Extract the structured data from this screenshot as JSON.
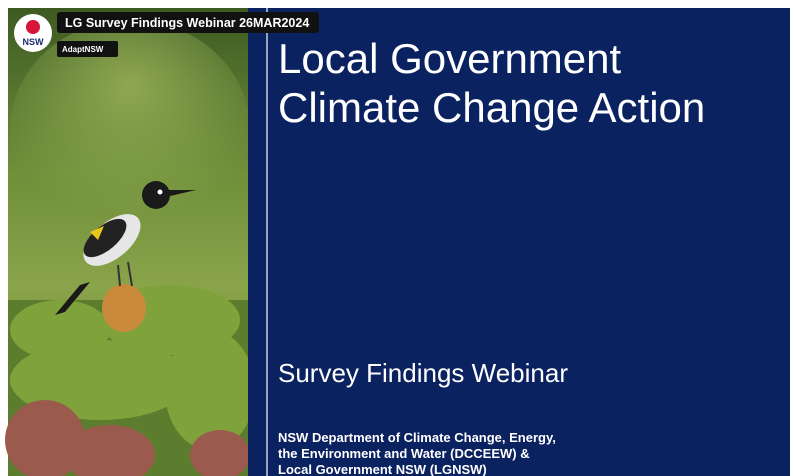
{
  "video": {
    "title": "LG Survey Findings Webinar 26MAR2024",
    "channel": "AdaptNSW",
    "logo": "NSW"
  },
  "slide": {
    "title_lines": [
      "Local Government",
      "Climate Change Action"
    ],
    "subtitle": "Survey Findings Webinar",
    "presenters": [
      "NSW Department of Climate Change, Energy,",
      "the Environment and Water (DCCEEW) &",
      "Local Government NSW (LGNSW)"
    ]
  }
}
